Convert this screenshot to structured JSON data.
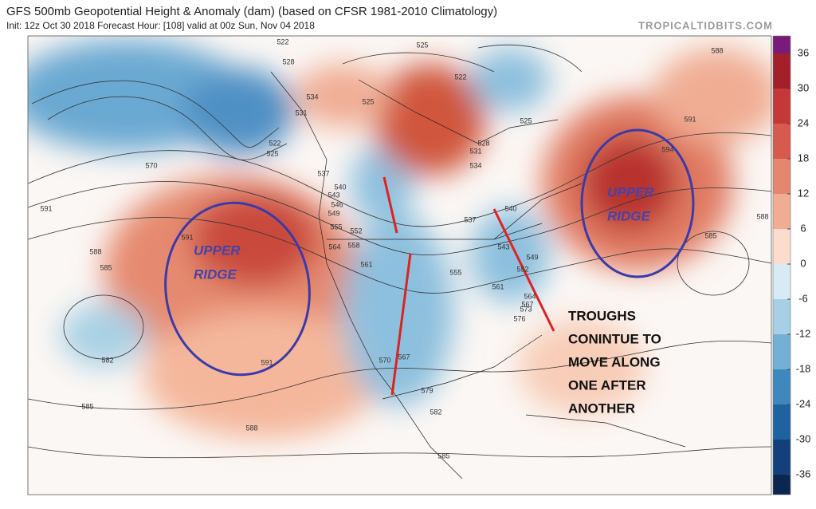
{
  "header": {
    "title": "GFS 500mb Geopotential Height & Anomaly (dam) (based on CFSR 1981-2010 Climatology)",
    "subtitle": "Init: 12z Oct 30 2018   Forecast Hour: [108]   valid at 00z Sun, Nov 04 2018",
    "watermark": "TROPICALTIDBITS.COM"
  },
  "colorbar": {
    "ticks": [
      36,
      30,
      24,
      18,
      12,
      6,
      0,
      -6,
      -12,
      -18,
      -24,
      -30,
      -36
    ],
    "colors": [
      "#7a1a7a",
      "#a31f2a",
      "#c4383a",
      "#d75a4e",
      "#e58670",
      "#f0ad94",
      "#fbdccd",
      "#d8ebf4",
      "#a8d0e4",
      "#74b0d4",
      "#3f88bd",
      "#1f62a0",
      "#133f7a",
      "#0c2652"
    ]
  },
  "contour_labels": [
    522,
    528,
    534,
    531,
    522,
    525,
    570,
    591,
    591,
    588,
    585,
    582,
    585,
    588,
    591,
    537,
    540,
    543,
    546,
    549,
    555,
    564,
    552,
    558,
    561,
    570,
    567,
    579,
    582,
    585,
    525,
    522,
    525,
    528,
    531,
    534,
    537,
    540,
    543,
    549,
    552,
    555,
    561,
    564,
    567,
    573,
    576,
    588,
    591,
    594,
    588,
    585,
    525
  ],
  "annotations": {
    "left_ridge": [
      "UPPER",
      "RIDGE"
    ],
    "right_ridge": [
      "UPPER",
      "RIDGE"
    ],
    "troughs": [
      "TROUGHS",
      "CONINTUE TO",
      "MOVE  ALONG",
      "ONE AFTER",
      "ANOTHER"
    ]
  }
}
